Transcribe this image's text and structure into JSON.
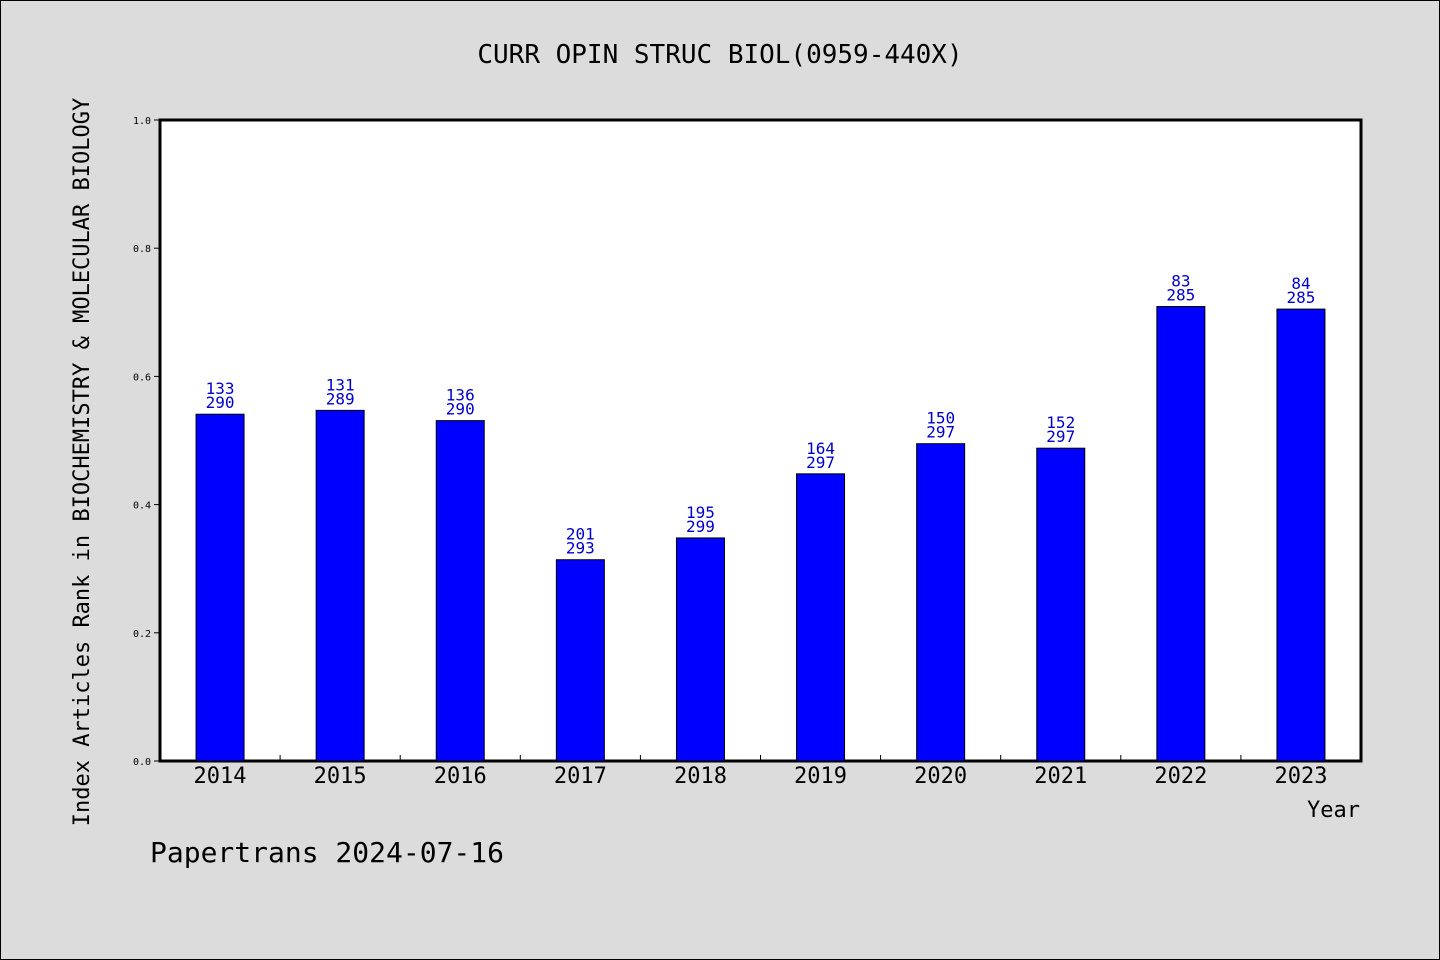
{
  "footer": "Papertrans 2024-07-16",
  "chart_data": {
    "type": "bar",
    "title": "CURR OPIN STRUC BIOL(0959-440X)",
    "xlabel": "Year",
    "ylabel": "Index Articles Rank in BIOCHEMISTRY & MOLECULAR BIOLOGY",
    "ylim": [
      0,
      1.0
    ],
    "yticks": [
      "0.0",
      "0.2",
      "0.4",
      "0.6",
      "0.8",
      "1.0"
    ],
    "grid": false,
    "bar_color": "#0000ff",
    "label_color": "#0000cc",
    "categories": [
      "2014",
      "2015",
      "2016",
      "2017",
      "2018",
      "2019",
      "2020",
      "2021",
      "2022",
      "2023"
    ],
    "values": [
      0.541,
      0.547,
      0.531,
      0.314,
      0.348,
      0.448,
      0.495,
      0.488,
      0.709,
      0.705
    ],
    "rank": [
      "133",
      "131",
      "136",
      "201",
      "195",
      "164",
      "150",
      "152",
      "83",
      "84"
    ],
    "total": [
      "290",
      "289",
      "290",
      "293",
      "299",
      "297",
      "297",
      "297",
      "285",
      "285"
    ]
  }
}
